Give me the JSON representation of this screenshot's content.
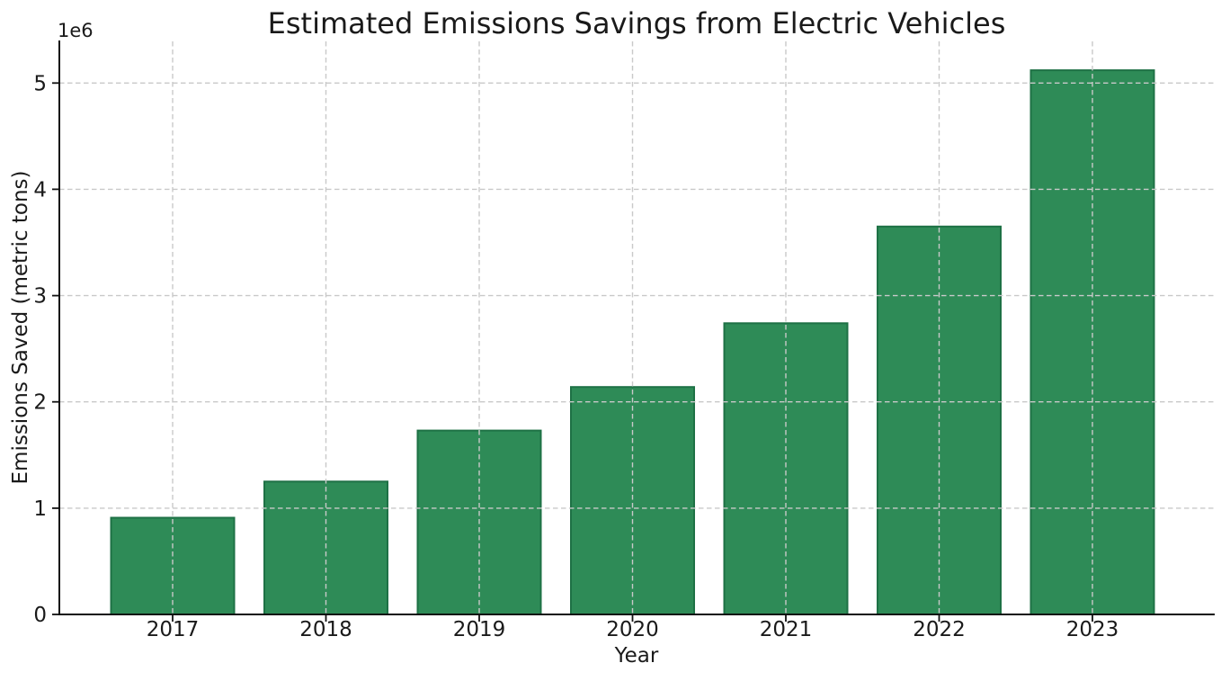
{
  "chart_data": {
    "type": "bar",
    "title": "Estimated Emissions Savings from Electric Vehicles",
    "xlabel": "Year",
    "ylabel": "Emissions Saved (metric tons)",
    "categories": [
      "2017",
      "2018",
      "2019",
      "2020",
      "2021",
      "2022",
      "2023"
    ],
    "values": [
      910000,
      1250000,
      1730000,
      2140000,
      2740000,
      3650000,
      5120000
    ],
    "series_unit": "metric tons",
    "y_axis": {
      "offset_text": "1e6",
      "tick_values": [
        0,
        1000000,
        2000000,
        3000000,
        4000000,
        5000000
      ],
      "tick_labels": [
        "0",
        "1",
        "2",
        "3",
        "4",
        "5"
      ],
      "ylim": [
        0,
        5380000
      ]
    },
    "grid": {
      "show": true,
      "line_style": "dashed",
      "color": "#c9c9c9",
      "vertical": true,
      "horizontal": true
    },
    "legend": {
      "show": false
    },
    "colors": {
      "bar_fill": "#2e8b57",
      "bar_edge": "#1e7145",
      "axis": "#111111",
      "text": "#1a1a1a",
      "background": "#ffffff"
    }
  }
}
